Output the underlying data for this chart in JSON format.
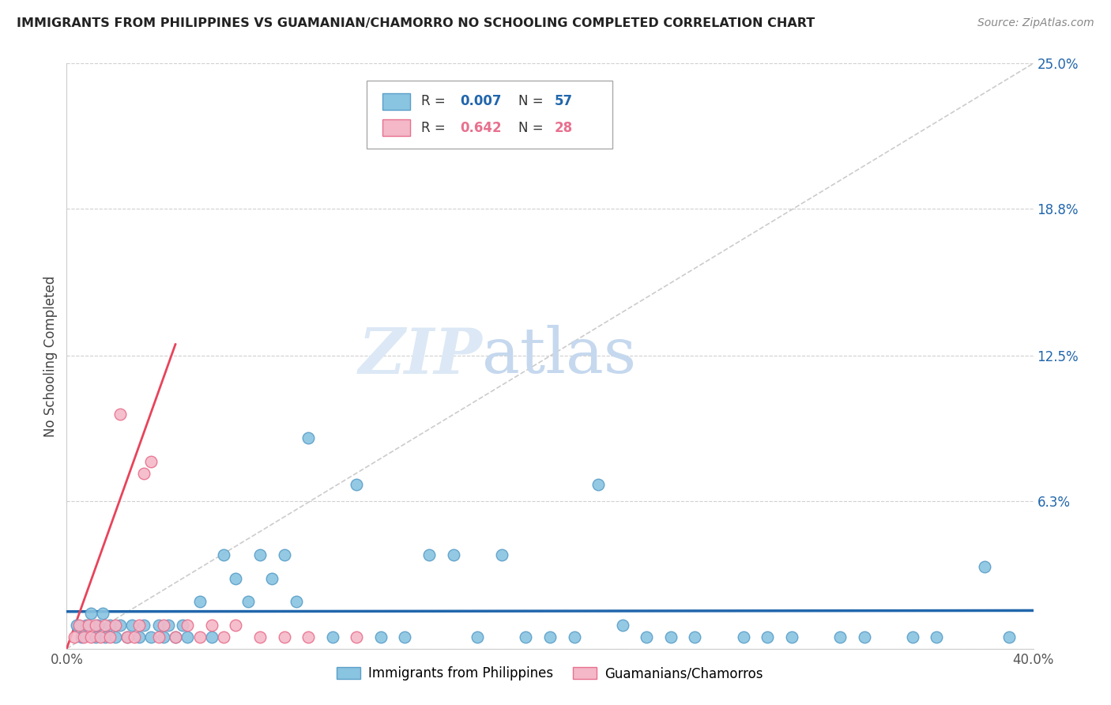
{
  "title": "IMMIGRANTS FROM PHILIPPINES VS GUAMANIAN/CHAMORRO NO SCHOOLING COMPLETED CORRELATION CHART",
  "source": "Source: ZipAtlas.com",
  "ylabel": "No Schooling Completed",
  "xlim": [
    0.0,
    0.4
  ],
  "ylim": [
    0.0,
    0.25
  ],
  "xtick_labels": [
    "0.0%",
    "40.0%"
  ],
  "ytick_labels_right": [
    "25.0%",
    "18.8%",
    "12.5%",
    "6.3%",
    ""
  ],
  "ytick_values_right": [
    0.25,
    0.188,
    0.125,
    0.063,
    0.0
  ],
  "color_blue": "#89c4e1",
  "color_pink": "#f4b8c8",
  "color_blue_edge": "#5b9fc8",
  "color_pink_edge": "#e8708e",
  "color_blue_line": "#2166ac",
  "color_pink_line": "#e8435a",
  "color_diag": "#cccccc",
  "watermark_zip": "ZIP",
  "watermark_atlas": "atlas",
  "background_color": "#ffffff",
  "grid_color": "#d0d0d0",
  "blue_x": [
    0.004,
    0.006,
    0.008,
    0.01,
    0.012,
    0.013,
    0.015,
    0.016,
    0.018,
    0.02,
    0.022,
    0.025,
    0.027,
    0.03,
    0.032,
    0.035,
    0.038,
    0.04,
    0.042,
    0.045,
    0.048,
    0.05,
    0.055,
    0.06,
    0.065,
    0.07,
    0.075,
    0.08,
    0.085,
    0.09,
    0.095,
    0.1,
    0.11,
    0.12,
    0.13,
    0.14,
    0.15,
    0.16,
    0.17,
    0.18,
    0.19,
    0.2,
    0.21,
    0.22,
    0.23,
    0.24,
    0.25,
    0.26,
    0.28,
    0.29,
    0.3,
    0.32,
    0.33,
    0.35,
    0.36,
    0.38,
    0.39
  ],
  "blue_y": [
    0.01,
    0.005,
    0.01,
    0.015,
    0.005,
    0.01,
    0.015,
    0.005,
    0.01,
    0.005,
    0.01,
    0.005,
    0.01,
    0.005,
    0.01,
    0.005,
    0.01,
    0.005,
    0.01,
    0.005,
    0.01,
    0.005,
    0.02,
    0.005,
    0.04,
    0.03,
    0.02,
    0.04,
    0.03,
    0.04,
    0.02,
    0.09,
    0.005,
    0.07,
    0.005,
    0.005,
    0.04,
    0.04,
    0.005,
    0.04,
    0.005,
    0.005,
    0.005,
    0.07,
    0.01,
    0.005,
    0.005,
    0.005,
    0.005,
    0.005,
    0.005,
    0.005,
    0.005,
    0.005,
    0.005,
    0.035,
    0.005
  ],
  "pink_x": [
    0.003,
    0.005,
    0.007,
    0.009,
    0.01,
    0.012,
    0.014,
    0.016,
    0.018,
    0.02,
    0.022,
    0.025,
    0.028,
    0.03,
    0.032,
    0.035,
    0.038,
    0.04,
    0.045,
    0.05,
    0.055,
    0.06,
    0.065,
    0.07,
    0.08,
    0.09,
    0.1,
    0.12
  ],
  "pink_y": [
    0.005,
    0.01,
    0.005,
    0.01,
    0.005,
    0.01,
    0.005,
    0.01,
    0.005,
    0.01,
    0.1,
    0.005,
    0.005,
    0.01,
    0.075,
    0.08,
    0.005,
    0.01,
    0.005,
    0.01,
    0.005,
    0.01,
    0.005,
    0.01,
    0.005,
    0.005,
    0.005,
    0.005
  ]
}
